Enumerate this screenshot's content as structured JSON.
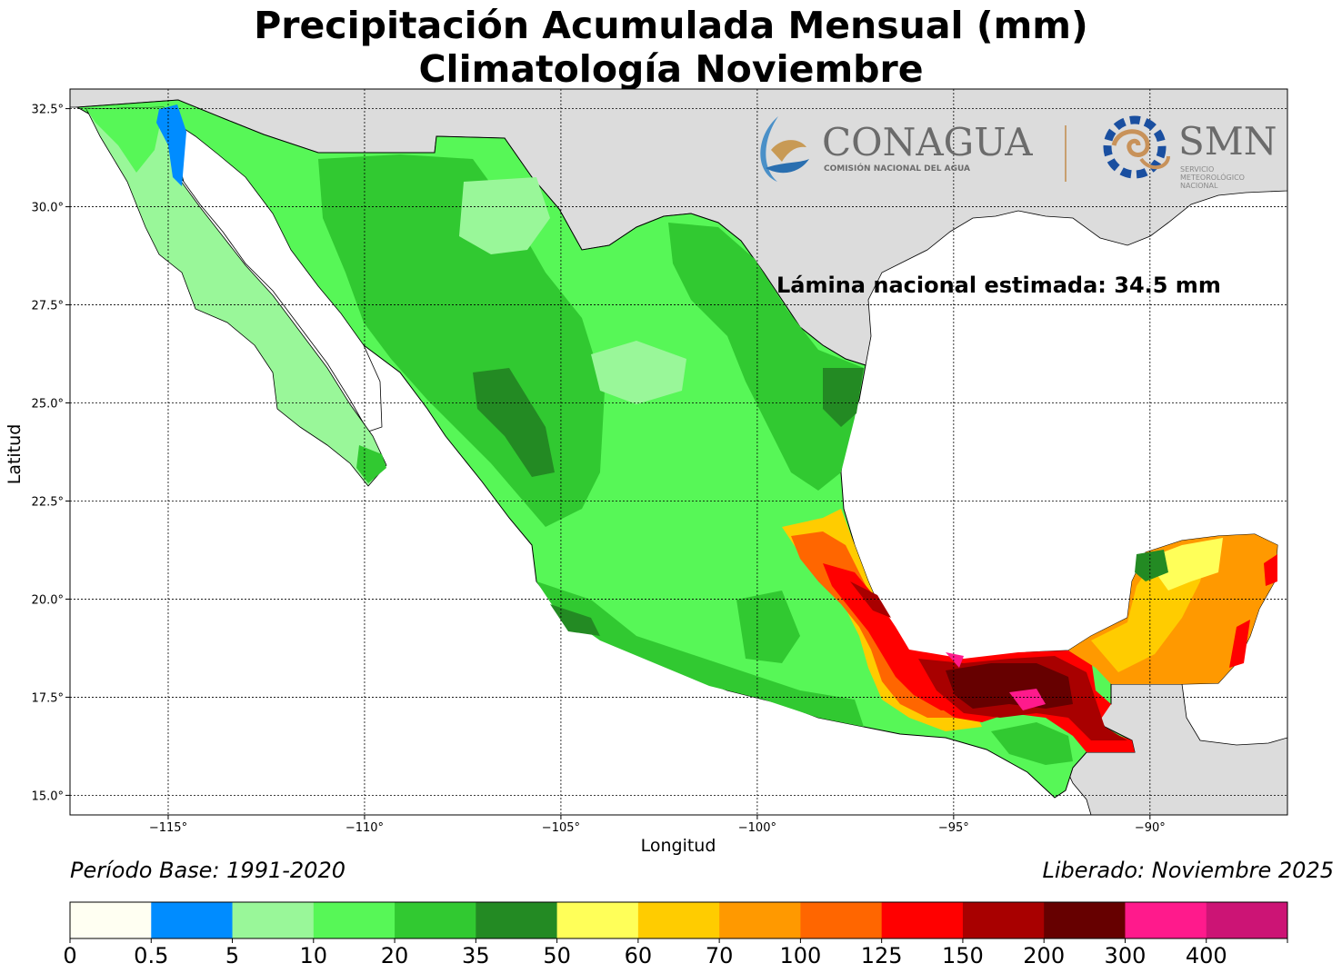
{
  "title": "Precipitación Acumulada Mensual (mm)",
  "subtitle": "Climatología Noviembre",
  "annotation": "Lámina nacional estimada: 34.5 mm",
  "period": "Período Base: 1991-2020",
  "released": "Liberado: Noviembre 2025",
  "xlabel": "Longitud",
  "ylabel": "Latitud",
  "lon_range": [
    -117.5,
    -86.5
  ],
  "lat_range": [
    14.5,
    33.0
  ],
  "lon_ticks": [
    {
      "value": -115,
      "label": "−115°"
    },
    {
      "value": -110,
      "label": "−110°"
    },
    {
      "value": -105,
      "label": "−105°"
    },
    {
      "value": -100,
      "label": "−100°"
    },
    {
      "value": -95,
      "label": "−95°"
    },
    {
      "value": -90,
      "label": "−90°"
    }
  ],
  "lat_ticks": [
    {
      "value": 32.5,
      "label": "32.5°"
    },
    {
      "value": 30.0,
      "label": "30.0°"
    },
    {
      "value": 27.5,
      "label": "27.5°"
    },
    {
      "value": 25.0,
      "label": "25.0°"
    },
    {
      "value": 22.5,
      "label": "22.5°"
    },
    {
      "value": 20.0,
      "label": "20.0°"
    },
    {
      "value": 17.5,
      "label": "17.5°"
    },
    {
      "value": 15.0,
      "label": "15.0°"
    }
  ],
  "colorbar": {
    "bounds": [
      "0",
      "0.5",
      "5",
      "10",
      "20",
      "35",
      "50",
      "60",
      "70",
      "100",
      "125",
      "150",
      "200",
      "300",
      "400"
    ],
    "colors": [
      "#fffff2",
      "#008cff",
      "#99f799",
      "#57f757",
      "#31c931",
      "#238a23",
      "#ffff59",
      "#ffcc00",
      "#ff9900",
      "#ff6600",
      "#ff0000",
      "#a80000",
      "#660000",
      "#ff1a8c",
      "#cc1475"
    ]
  },
  "logos": {
    "conagua_name": "CONAGUA",
    "conagua_sub": "COMISIÓN NACIONAL DEL AGUA",
    "smn_name": "SMN",
    "smn_sub1": "SERVICIO",
    "smn_sub2": "METEOROLÓGICO",
    "smn_sub3": "NACIONAL"
  },
  "colors": {
    "land_outside": "#dcdcdc",
    "sea": "#ffffff"
  }
}
